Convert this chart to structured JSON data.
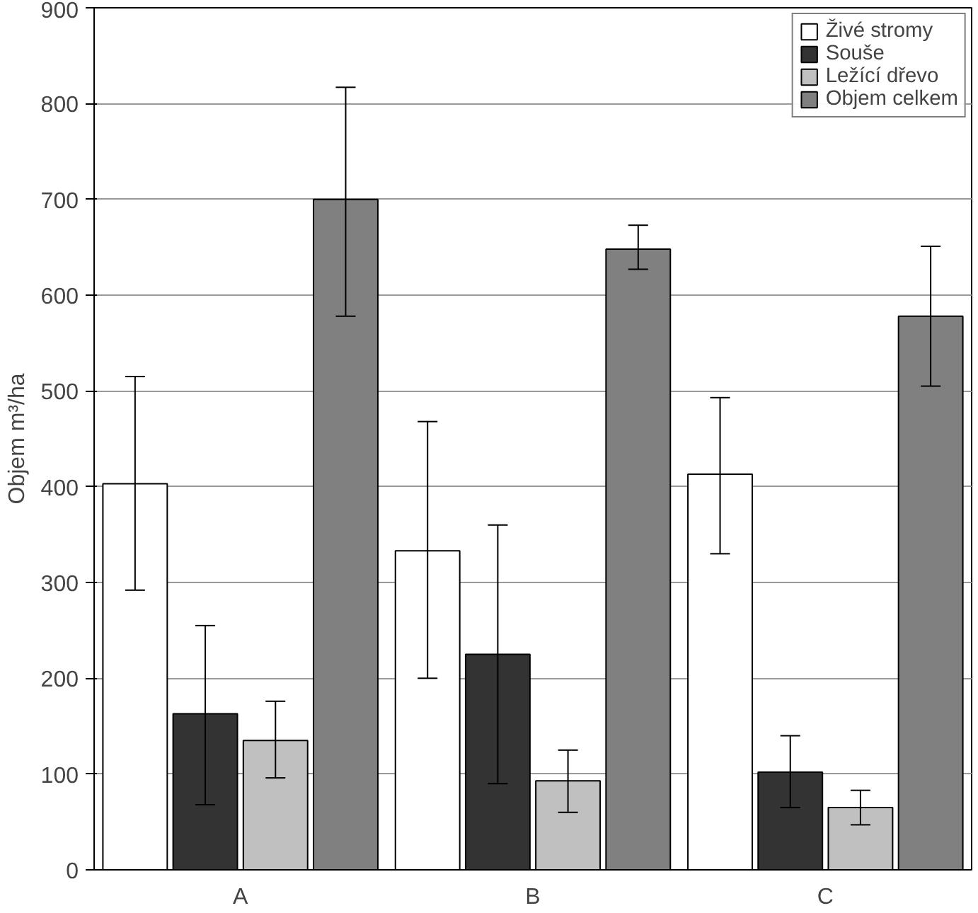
{
  "chart_data": {
    "type": "bar",
    "ylabel": "Objem m³/ha",
    "categories": [
      "A",
      "B",
      "C"
    ],
    "series": [
      {
        "name": "Živé stromy",
        "color": "#ffffff",
        "values": [
          403,
          333,
          413
        ],
        "errors": [
          [
            292,
            515
          ],
          [
            200,
            468
          ],
          [
            330,
            493
          ]
        ]
      },
      {
        "name": "Souše",
        "color": "#333333",
        "values": [
          163,
          225,
          102
        ],
        "errors": [
          [
            68,
            255
          ],
          [
            90,
            360
          ],
          [
            65,
            140
          ]
        ]
      },
      {
        "name": "Ležící dřevo",
        "color": "#c0c0c0",
        "values": [
          135,
          93,
          65
        ],
        "errors": [
          [
            96,
            176
          ],
          [
            60,
            125
          ],
          [
            47,
            83
          ]
        ]
      },
      {
        "name": "Objem celkem",
        "color": "#808080",
        "values": [
          700,
          648,
          578
        ],
        "errors": [
          [
            578,
            817
          ],
          [
            627,
            673
          ],
          [
            505,
            651
          ]
        ]
      }
    ],
    "ylim": [
      0,
      900
    ],
    "yticks": [
      0,
      100,
      200,
      300,
      400,
      500,
      600,
      700,
      800,
      900
    ],
    "grid": "y",
    "legend": "top right"
  }
}
